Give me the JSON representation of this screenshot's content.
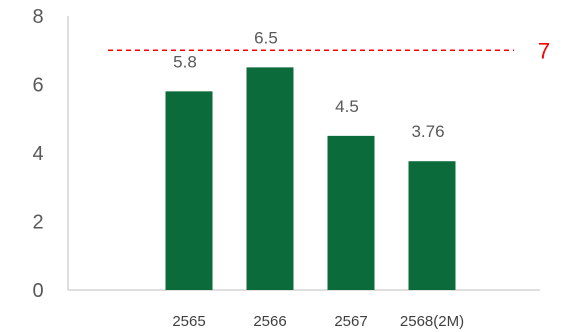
{
  "chart_data": {
    "type": "bar",
    "categories": [
      "2565",
      "2566",
      "2567",
      "2568(2M)"
    ],
    "values": [
      5.8,
      6.5,
      4.5,
      3.76
    ],
    "data_labels": [
      "5.8",
      "6.5",
      "4.5",
      "3.76"
    ],
    "ylim": [
      0,
      8
    ],
    "yticks": [
      0,
      2,
      4,
      6,
      8
    ],
    "ytick_labels": [
      "0",
      "2",
      "4",
      "6",
      "8"
    ],
    "title": "",
    "xlabel": "",
    "ylabel": "",
    "grid": false,
    "target_line": {
      "value": 7,
      "label": "7",
      "style": "dashed",
      "color": "#ff0000"
    },
    "colors": {
      "bar": "#0b6b3a",
      "axis": "#bfbfbf"
    }
  }
}
